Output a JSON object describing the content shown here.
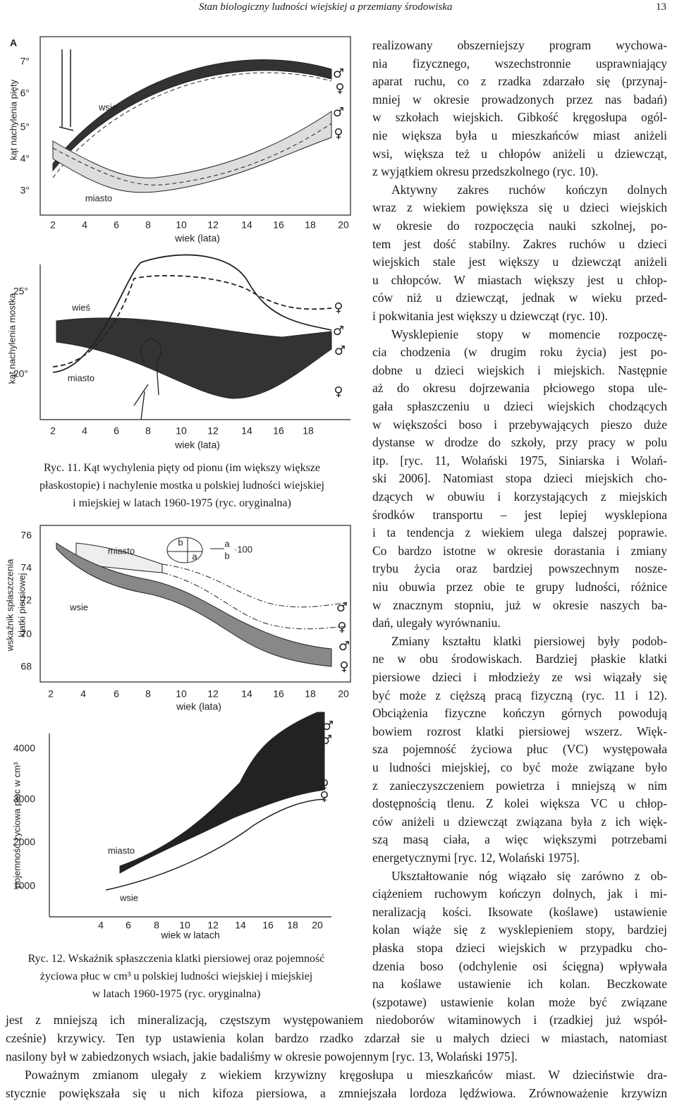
{
  "header": {
    "title": "Stan biologiczny ludności wiejskiej a przemiany środowiska",
    "page_number": "13"
  },
  "figures": [
    {
      "caption": [
        "Ryc. 11. Kąt wychylenia pięty od pionu (im większy większe",
        "płaskostopie) i nachylenie mostka u polskiej ludności wiejskiej",
        "i miejskiej w latach 1960-1975 (ryc. oryginalna)"
      ],
      "panels": [
        {
          "panel_label": "A",
          "y_axis_title": [
            "kąt nachylenia pięty"
          ],
          "y_ticks": [
            "7°",
            "6°",
            "5°",
            "4°",
            "3°"
          ],
          "x_ticks": [
            "2",
            "4",
            "6",
            "8",
            "10",
            "12",
            "14",
            "16",
            "18",
            "20"
          ],
          "x_axis_title": "wiek (lata)",
          "labels": [
            "wsie",
            "miasto"
          ],
          "symbols": [
            "♂",
            "♀",
            "♂",
            "♀"
          ]
        },
        {
          "y_axis_title": [
            "kąt nachylenia mostka"
          ],
          "y_ticks": [
            "25°",
            "20°"
          ],
          "x_ticks": [
            "2",
            "4",
            "6",
            "8",
            "10",
            "12",
            "14",
            "16",
            "18"
          ],
          "x_axis_title": "wiek (lata)",
          "labels": [
            "wieś",
            "miasto"
          ],
          "symbols": [
            "♀",
            "♂",
            "♂",
            "♀"
          ]
        }
      ]
    },
    {
      "caption": [
        "Ryc. 12. Wskaźnik spłaszczenia klatki piersiowej oraz pojemność",
        "życiowa płuc w cm³ u polskiej ludności wiejskiej i miejskiej",
        "w latach 1960-1975 (ryc. oryginalna)"
      ],
      "panels": [
        {
          "y_axis_title": [
            "wskaźnik spłaszczenia",
            "klatki piersiowej"
          ],
          "y_ticks": [
            "76",
            "74",
            "72",
            "70",
            "68"
          ],
          "x_ticks": [
            "2",
            "4",
            "6",
            "8",
            "10",
            "12",
            "14",
            "16",
            "18",
            "20"
          ],
          "x_axis_title": "wiek (lata)",
          "labels": [
            "miasto",
            "wsie",
            "b",
            "a",
            "a",
            "b",
            "·100"
          ],
          "symbols": [
            "♂",
            "♀",
            "♂",
            "♀"
          ]
        },
        {
          "y_axis_title": [
            "pojemność życiowa płuc w cm³"
          ],
          "y_ticks": [
            "4000",
            "3000",
            "2000",
            "1000"
          ],
          "x_ticks": [
            "4",
            "6",
            "8",
            "10",
            "12",
            "14",
            "16",
            "18",
            "20"
          ],
          "x_axis_title": "wiek w latach",
          "labels": [
            "miasto",
            "wsie"
          ],
          "symbols": [
            "♂",
            "♂",
            "♀",
            "♀"
          ]
        }
      ]
    }
  ],
  "body": {
    "column_paragraphs": [
      [
        "realizowany obszerniejszy program wychowa-",
        "nia fizycznego, wszechstronnie usprawniający",
        "aparat ruchu, co z rzadka zdarzało się (przynaj-",
        "mniej w okresie prowadzonych przez nas badań)",
        "w szkołach wiejskich. Gibkość kręgosłupa ogól-",
        "nie większa była u mieszkańców miast aniżeli",
        "wsi, większa też u chłopów aniżeli u dziewcząt,",
        "z wyjątkiem okresu przedszkolnego (ryc. 10)."
      ],
      [
        "Aktywny zakres ruchów kończyn dolnych",
        "wraz z wiekiem powiększa się u dzieci wiejskich",
        "w okresie do rozpoczęcia nauki szkolnej, po-",
        "tem jest dość stabilny. Zakres ruchów u dzieci",
        "wiejskich stale jest większy u dziewcząt aniżeli",
        "u chłopców. W miastach większy jest u chłop-",
        "ców niż u dziewcząt, jednak w wieku przed-",
        "i pokwitania jest większy u dziewcząt (ryc. 10)."
      ],
      [
        "Wysklepienie stopy w momencie rozpoczę-",
        "cia chodzenia (w drugim roku życia) jest po-",
        "dobne u dzieci wiejskich i miejskich. Następnie",
        "aż do okresu dojrzewania płciowego stopa ule-",
        "gała spłaszczeniu u dzieci wiejskich chodzących",
        "w większości boso i przebywających pieszo duże",
        "dystanse w drodze do szkoły, przy pracy w polu",
        "itp. [ryc. 11, Wolański 1975, Siniarska i Wolań-",
        "ski 2006]. Natomiast stopa dzieci miejskich cho-",
        "dzących w obuwiu i korzystających z miejskich",
        "środków transportu – jest lepiej wysklepiona",
        "i ta tendencja z wiekiem ulega dalszej poprawie.",
        "Co bardzo istotne w okresie dorastania i zmiany",
        "trybu życia oraz bardziej powszechnym nosze-",
        "niu obuwia przez obie te grupy ludności, różnice",
        "w znacznym stopniu, już w okresie naszych ba-",
        "dań, ulegały wyrównaniu."
      ],
      [
        "Zmiany kształtu klatki piersiowej były podob-",
        "ne w obu środowiskach. Bardziej płaskie klatki",
        "piersiowe dzieci i młodzieży ze wsi wiązały się",
        "być może z cięższą pracą fizyczną (ryc. 11 i 12).",
        "Obciążenia fizyczne kończyn górnych powodują",
        "bowiem rozrost klatki piersiowej wszerz. Więk-",
        "sza pojemność życiowa płuc (VC) występowała",
        "u ludności miejskiej, co być może związane było",
        "z zanieczyszczeniem powietrza i mniejszą w nim",
        "dostępnością tlenu. Z kolei większa VC u chłop-",
        "ców aniżeli u dziewcząt związana była z ich więk-",
        "szą masą ciała, a więc większymi potrzebami",
        "energetycznymi [ryc. 12, Wolański 1975]."
      ],
      [
        "Ukształtowanie nóg wiązało się zarówno z ob-",
        "ciążeniem ruchowym kończyn dolnych, jak i mi-",
        "neralizacją kości. Iksowate (koślawe) ustawienie",
        "kolan wiąże się z wysklepieniem stopy, bardziej",
        "płaska stopa dzieci wiejskich w przypadku cho-",
        "dzenia boso (odchylenie osi ścięgna) wpływała",
        "na koślawe ustawienie ich kolan. Beczkowate",
        "(szpotawe) ustawienie kolan może być związane"
      ]
    ],
    "full_width_paragraphs": [
      [
        "jest z mniejszą ich mineralizacją, częstszym występowaniem niedoborów witaminowych i (rzadkiej już współ-",
        "cześnie) krzywicy. Ten typ ustawienia kolan bardzo rzadko zdarzał sie u małych dzieci w miastach, natomiast",
        "nasilony był w zabiedzonych wsiach, jakie badaliśmy w okresie powojennym [ryc. 13, Wolański 1975]."
      ],
      [
        "Poważnym zmianom ulegały z wiekiem krzywizny kręgosłupa u mieszkańców miast. W dzieciństwie dra-",
        "stycznie powiększała się u nich kifoza piersiowa, a zmniejszała lordoza lędźwiowa. Zrównoważenie krzywizn"
      ]
    ]
  }
}
